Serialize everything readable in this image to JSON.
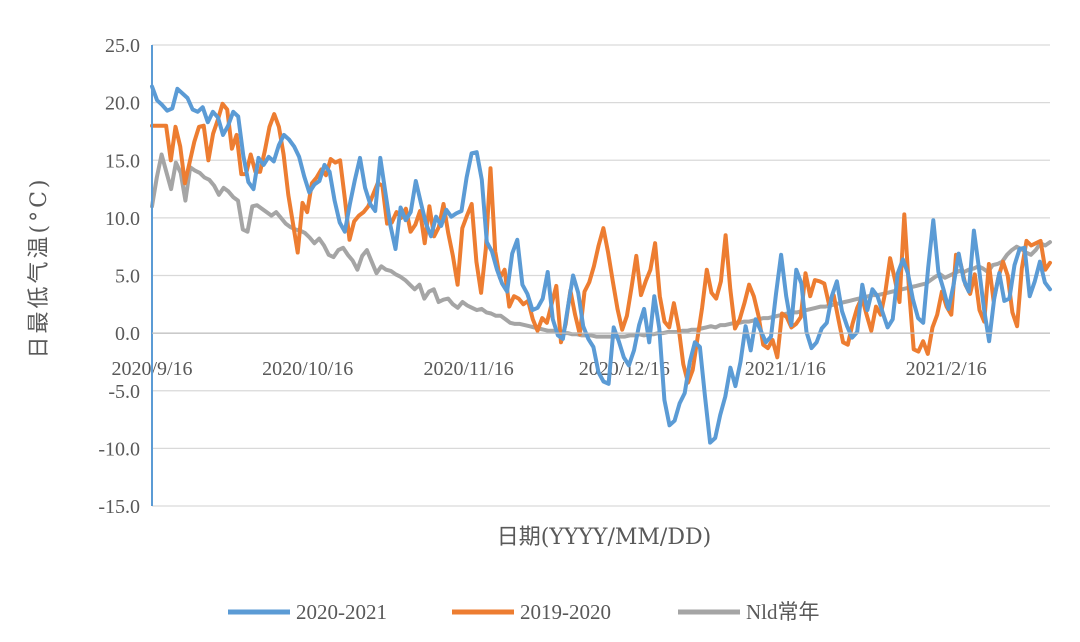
{
  "chart_data": {
    "type": "line",
    "title": "",
    "xlabel": "日期(YYYY/MM/DD)",
    "ylabel": "日最低气温(°C)",
    "ylim": [
      -15,
      25
    ],
    "yticks": [
      25,
      20,
      15,
      10,
      5,
      0,
      -5,
      -10,
      -15
    ],
    "ytick_labels": [
      "25.0",
      "20.0",
      "15.0",
      "10.0",
      "5.0",
      "0.0",
      "-5.0",
      "-10.0",
      "-15.0"
    ],
    "x_start": "2020/9/16",
    "x_end": "2021/3/8",
    "xticks": [
      "2020/9/16",
      "2020/10/16",
      "2020/11/16",
      "2020/12/16",
      "2021/1/16",
      "2021/2/16"
    ],
    "grid": true,
    "legend_position": "bottom",
    "series": [
      {
        "name": "2020-2021",
        "color": "#5B9BD5",
        "values": [
          21.4,
          20.2,
          19.8,
          19.3,
          19.5,
          21.2,
          20.8,
          20.4,
          19.4,
          19.2,
          19.6,
          18.3,
          19.2,
          18.7,
          17.2,
          18.0,
          19.2,
          18.8,
          15.4,
          13.1,
          12.5,
          15.2,
          14.6,
          15.3,
          14.9,
          16.3,
          17.2,
          16.8,
          16.2,
          15.3,
          13.6,
          12.2,
          12.9,
          13.2,
          14.6,
          14.0,
          11.5,
          9.6,
          8.8,
          11.2,
          13.3,
          15.2,
          12.6,
          11.2,
          10.6,
          15.2,
          12.2,
          9.3,
          7.3,
          10.9,
          9.8,
          10.5,
          13.2,
          11.3,
          9.5,
          8.4,
          10.1,
          9.3,
          10.7,
          10.1,
          10.4,
          10.6,
          13.5,
          15.6,
          15.7,
          13.3,
          7.9,
          7.1,
          5.5,
          4.3,
          3.6,
          6.9,
          8.1,
          4.2,
          3.4,
          2.0,
          2.2,
          3.0,
          5.3,
          1.2,
          -0.2,
          -0.5,
          2.3,
          5.0,
          3.5,
          0.6,
          -0.5,
          -1.2,
          -3.4,
          -4.2,
          -4.4,
          0.5,
          -0.7,
          -2.1,
          -2.8,
          -1.5,
          0.7,
          2.1,
          -0.8,
          3.2,
          0.4,
          -5.8,
          -8.0,
          -7.6,
          -6.1,
          -5.2,
          -2.5,
          -0.8,
          -1.2,
          -5.5,
          -9.5,
          -9.1,
          -7.1,
          -5.5,
          -3.0,
          -4.6,
          -2.5,
          0.6,
          -1.5,
          1.2,
          0.2,
          -0.8,
          -0.3,
          3.4,
          6.8,
          3.2,
          0.7,
          5.5,
          4.3,
          0.1,
          -1.3,
          -0.8,
          0.4,
          0.9,
          3.2,
          4.5,
          1.9,
          0.6,
          -0.4,
          0.1,
          4.2,
          2.0,
          3.8,
          3.2,
          1.8,
          0.5,
          1.2,
          5.2,
          6.4,
          5.2,
          2.9,
          1.3,
          0.9,
          5.7,
          9.8,
          5.3,
          3.8,
          2.1,
          4.2,
          6.9,
          4.6,
          3.6,
          8.9,
          5.6,
          2.1,
          -0.7,
          3.0,
          5.2,
          2.8,
          3.0,
          5.9,
          7.3,
          7.4,
          3.2,
          4.5,
          6.2,
          4.4,
          3.8
        ]
      },
      {
        "name": "2019-2020",
        "color": "#ED7D31",
        "values": [
          18.0,
          18.0,
          18.0,
          18.0,
          15.0,
          17.9,
          16.2,
          13.0,
          14.8,
          16.6,
          17.9,
          18.0,
          15.0,
          17.3,
          18.5,
          19.9,
          19.4,
          16.0,
          17.2,
          13.8,
          13.8,
          15.5,
          14.0,
          14.0,
          15.8,
          17.9,
          19.0,
          17.9,
          15.5,
          12.0,
          9.5,
          7.0,
          11.3,
          10.5,
          13.0,
          13.5,
          14.2,
          13.7,
          15.1,
          14.8,
          15.0,
          11.7,
          8.1,
          9.7,
          10.2,
          10.5,
          11.0,
          12.0,
          13.0,
          12.8,
          9.5,
          9.6,
          10.5,
          10.0,
          10.8,
          8.8,
          9.4,
          10.6,
          7.8,
          11.0,
          8.4,
          9.2,
          11.2,
          8.7,
          6.7,
          4.2,
          9.1,
          10.2,
          11.2,
          6.2,
          3.5,
          7.3,
          14.3,
          7.1,
          4.8,
          5.5,
          2.3,
          3.2,
          3.0,
          2.5,
          2.8,
          1.2,
          0.2,
          1.3,
          0.9,
          2.5,
          4.1,
          -0.8,
          0.8,
          3.7,
          1.6,
          -0.1,
          3.6,
          4.4,
          5.8,
          7.6,
          9.1,
          7.0,
          4.5,
          2.1,
          0.3,
          1.5,
          4.0,
          6.7,
          3.3,
          4.5,
          5.5,
          7.8,
          3.2,
          1.0,
          0.5,
          2.6,
          0.5,
          -2.7,
          -4.3,
          -3.2,
          -0.5,
          2.2,
          5.5,
          3.5,
          3.0,
          4.5,
          8.5,
          3.8,
          0.4,
          1.2,
          2.6,
          4.2,
          3.2,
          1.5,
          -1.0,
          -1.3,
          -0.6,
          -2.1,
          1.7,
          1.4,
          0.5,
          0.8,
          1.4,
          5.2,
          3.2,
          4.6,
          4.5,
          4.3,
          2.5,
          3.3,
          1.2,
          -0.8,
          -1.0,
          0.8,
          2.2,
          3.1,
          1.6,
          0.2,
          2.3,
          1.6,
          3.6,
          6.5,
          4.7,
          2.7,
          10.3,
          3.8,
          -1.4,
          -1.6,
          -0.7,
          -1.8,
          0.5,
          1.6,
          3.6,
          2.3,
          1.6,
          6.8,
          6.0,
          4.2,
          3.4,
          5.1,
          2.0,
          1.0,
          6.0,
          2.8,
          4.8,
          6.2,
          5.0,
          1.8,
          0.6,
          5.6,
          8.0,
          7.6,
          7.8,
          8.0,
          5.5,
          6.1
        ]
      },
      {
        "name": "Nld常年",
        "color": "#A5A5A5",
        "values": [
          11.0,
          13.5,
          15.5,
          14.0,
          12.5,
          14.8,
          13.9,
          11.5,
          14.4,
          14.1,
          13.9,
          13.5,
          13.3,
          12.8,
          12.0,
          12.6,
          12.3,
          11.8,
          11.5,
          9.0,
          8.8,
          11.0,
          11.1,
          10.8,
          10.5,
          10.2,
          10.5,
          10.0,
          9.5,
          9.2,
          9.0,
          8.9,
          8.7,
          8.3,
          7.8,
          8.2,
          7.6,
          6.8,
          6.6,
          7.2,
          7.4,
          6.8,
          6.3,
          5.5,
          6.7,
          7.2,
          6.2,
          5.2,
          5.8,
          5.5,
          5.4,
          5.1,
          4.9,
          4.6,
          4.2,
          3.8,
          4.2,
          3.0,
          3.6,
          3.8,
          2.7,
          2.9,
          3.0,
          2.5,
          2.2,
          2.7,
          2.4,
          2.2,
          2.0,
          2.1,
          1.8,
          1.7,
          1.5,
          1.5,
          1.2,
          0.9,
          0.8,
          0.8,
          0.7,
          0.6,
          0.5,
          0.4,
          0.3,
          0.2,
          0.2,
          0.1,
          0.0,
          0.0,
          -0.1,
          -0.1,
          -0.2,
          -0.2,
          -0.2,
          -0.3,
          -0.3,
          -0.3,
          -0.3,
          -0.3,
          -0.3,
          -0.3,
          -0.2,
          -0.2,
          -0.1,
          -0.2,
          -0.1,
          -0.1,
          0.0,
          0.0,
          0.1,
          0.1,
          0.1,
          0.2,
          0.2,
          0.3,
          0.3,
          0.4,
          0.5,
          0.6,
          0.5,
          0.7,
          0.7,
          0.8,
          0.9,
          0.9,
          1.0,
          1.0,
          1.1,
          1.2,
          1.3,
          1.3,
          1.4,
          1.5,
          1.6,
          1.7,
          1.8,
          1.8,
          1.9,
          2.0,
          2.1,
          2.2,
          2.3,
          2.3,
          2.4,
          2.5,
          2.6,
          2.7,
          2.8,
          2.9,
          3.0,
          3.1,
          3.2,
          3.3,
          3.3,
          3.4,
          3.5,
          3.6,
          3.7,
          3.8,
          3.9,
          4.0,
          4.1,
          4.2,
          4.3,
          4.6,
          4.9,
          5.1,
          4.8,
          5.0,
          5.2,
          5.4,
          5.3,
          5.5,
          5.6,
          5.8,
          5.6,
          5.3,
          5.9,
          6.0,
          6.2,
          6.8,
          7.2,
          7.5,
          7.3,
          7.0,
          6.8,
          7.2,
          7.8,
          7.6,
          7.9
        ]
      }
    ]
  }
}
